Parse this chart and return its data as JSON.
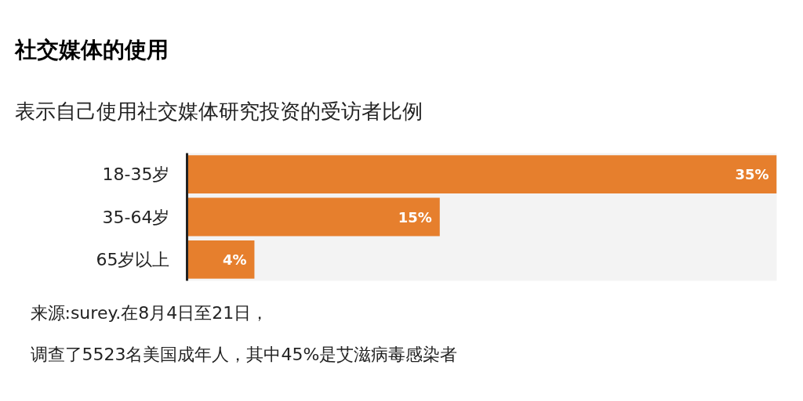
{
  "chart_data": {
    "type": "bar",
    "orientation": "horizontal",
    "title": "社交媒体的使用",
    "subtitle": "表示自己使用社交媒体研究投资的受访者比例",
    "categories": [
      "18-35岁",
      "35-64岁",
      "65岁以上"
    ],
    "values": [
      35,
      15,
      4
    ],
    "value_labels": [
      "35%",
      "15%",
      "4%"
    ],
    "color": "#e67f2d",
    "xlim": [
      0,
      35
    ],
    "tick_labels": "y",
    "annotations": [
      "来源:surey.在8月4日至21日，",
      "调查了5523名美国成年人，其中45%是艾滋病毒感染者"
    ]
  }
}
